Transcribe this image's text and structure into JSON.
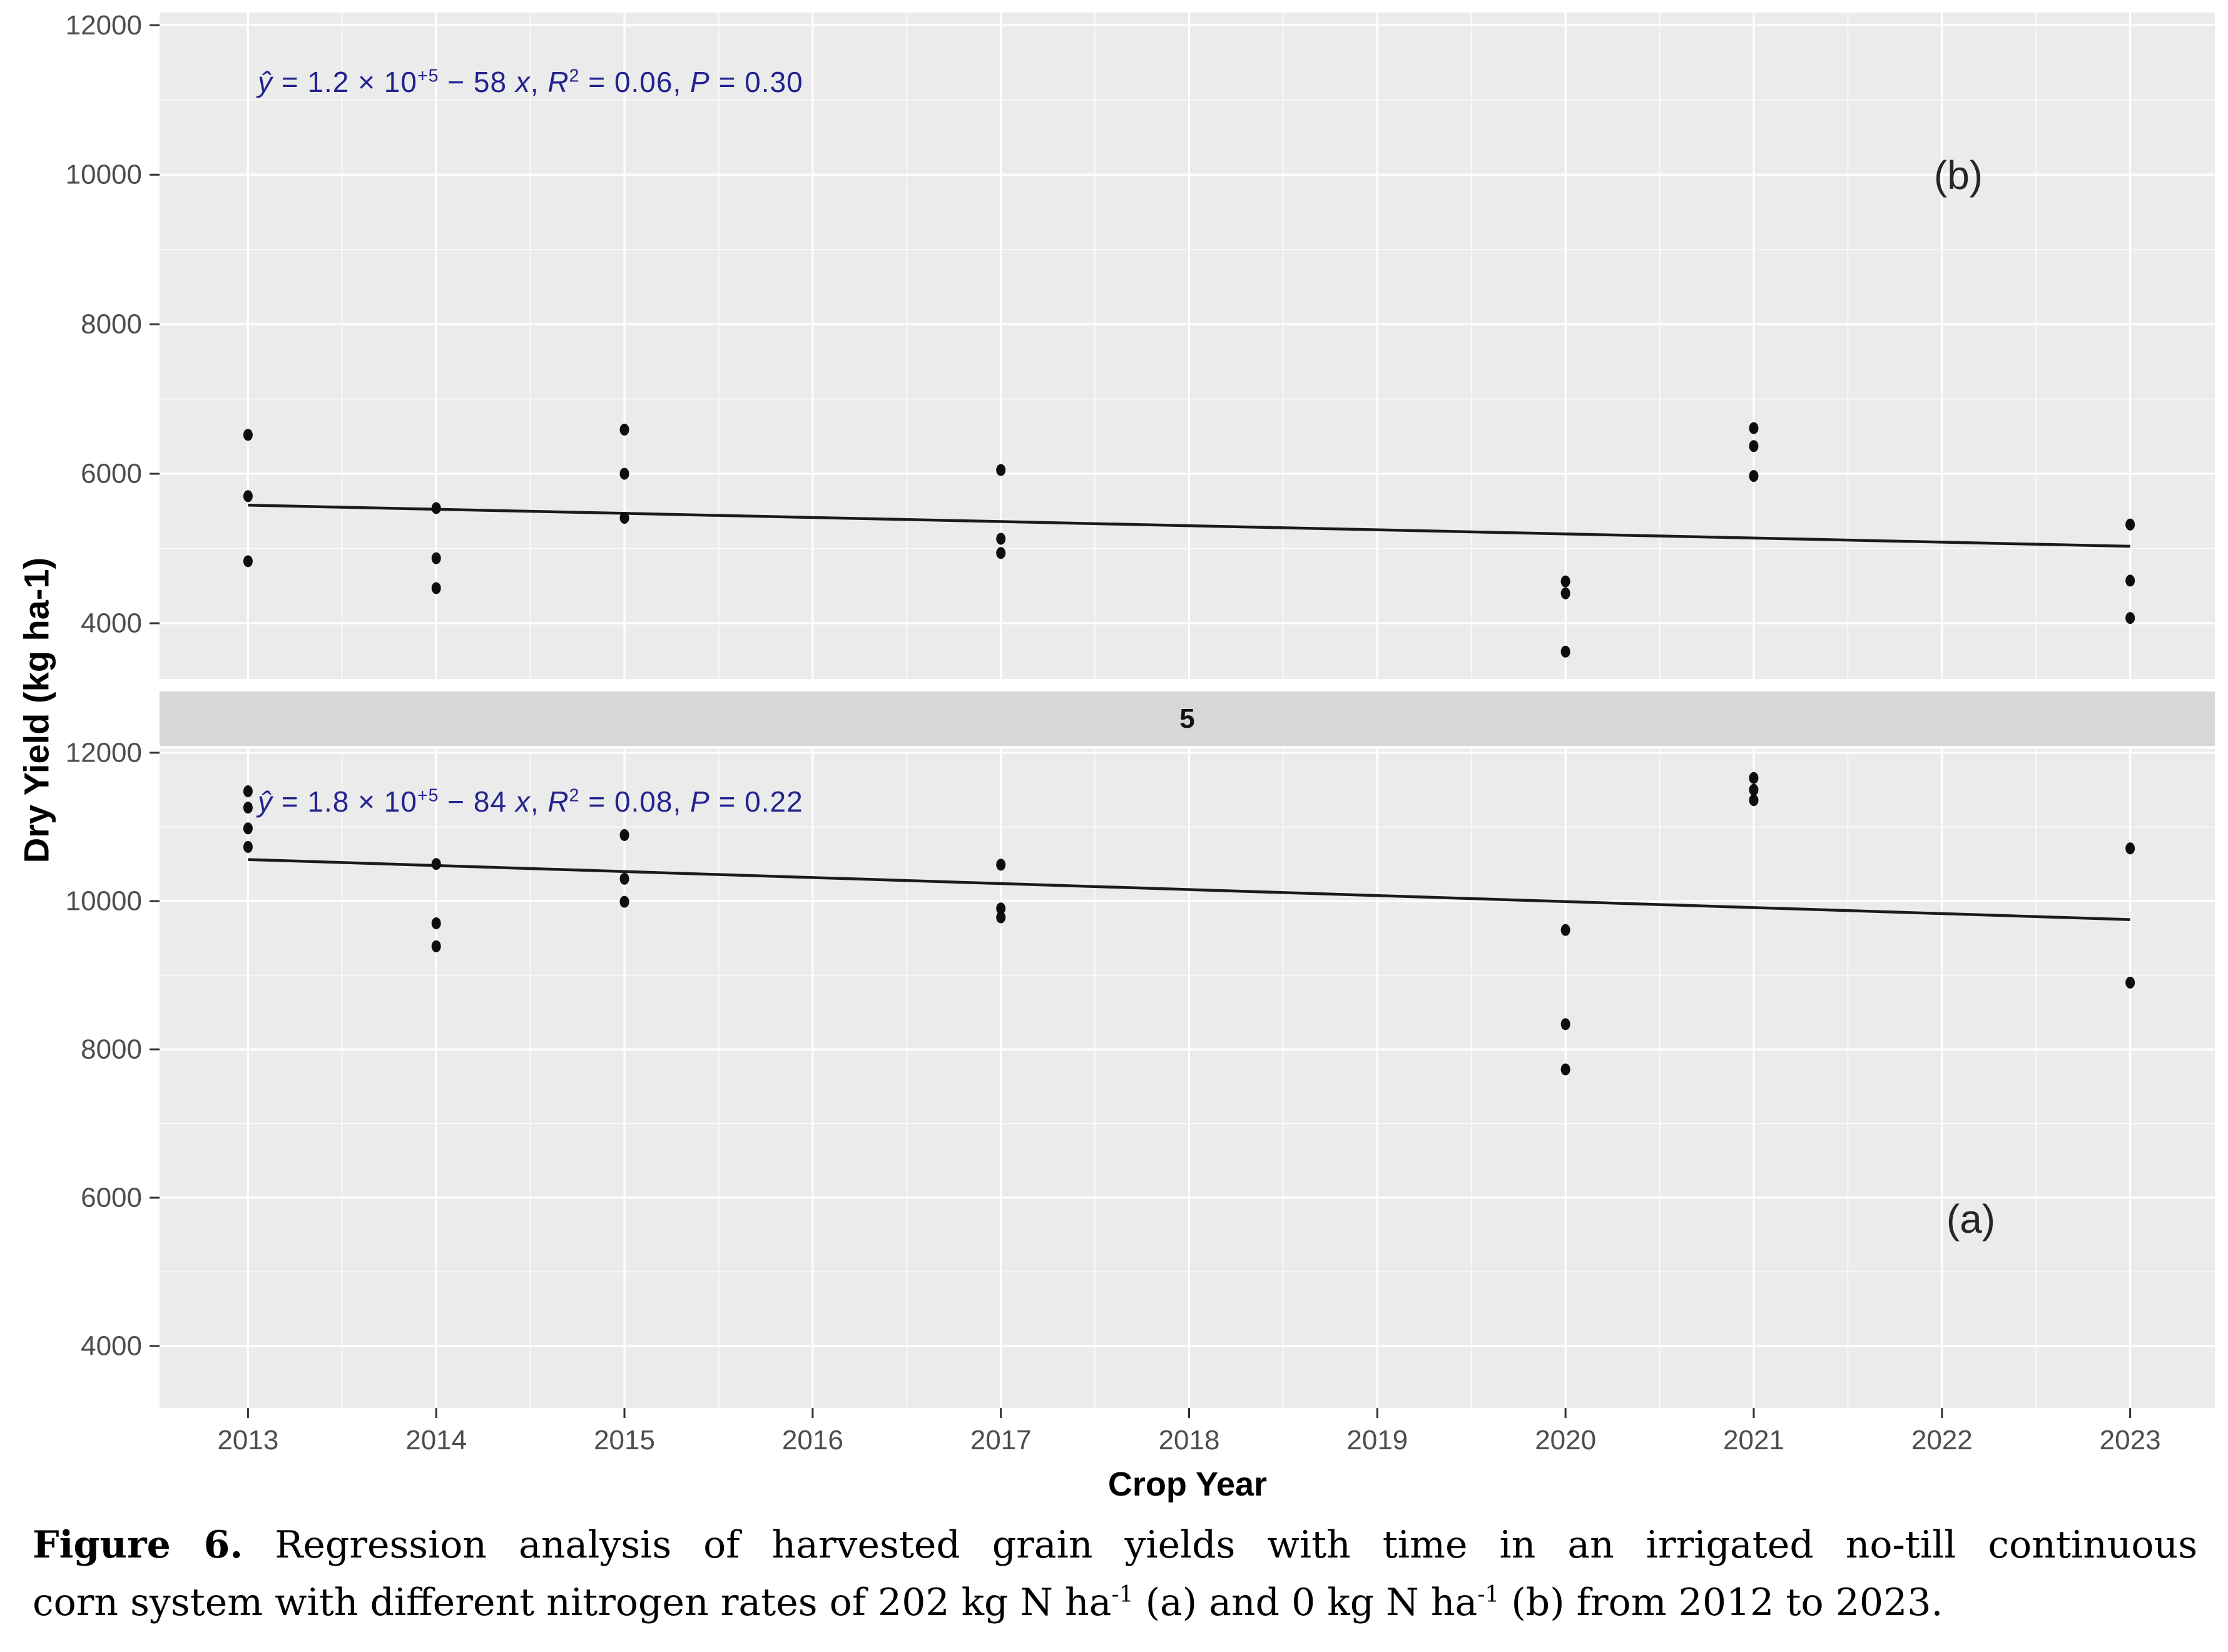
{
  "colors": {
    "panel_bg": "#ebebeb",
    "strip_bg": "#d7d7d7",
    "grid": "#ffffff",
    "point": "#0d0d0d",
    "line": "#1a1a1a",
    "tick": "#333333",
    "tick_label": "#4d4d4d",
    "equation": "#23238f"
  },
  "y_axis_title": "Dry Yield (kg ha-1)",
  "x_axis_title": "Crop Year",
  "strip_label": "5",
  "caption": {
    "line1_runs": [
      {
        "t": "Figure 6.",
        "b": 1
      },
      {
        "t": " Regression analysis of harvested grain yields with time in an irrigated no-till continuous"
      }
    ],
    "line2_runs": [
      {
        "t": "corn system with different nitrogen rates of 202 kg N ha"
      },
      {
        "t": "-1",
        "sup": 1
      },
      {
        "t": " (a) and 0 kg N ha"
      },
      {
        "t": "-1",
        "sup": 1
      },
      {
        "t": " (b) from 2012 to 2023."
      }
    ]
  },
  "chart_data": [
    {
      "panel": "top",
      "label": "(b)",
      "type": "scatter",
      "xlabel": "Crop Year",
      "ylabel": "Dry Yield (kg ha-1)",
      "equation_runs": [
        {
          "t": "ŷ",
          "i": 1
        },
        {
          "t": " = 1.2 × 10"
        },
        {
          "t": "+5",
          "sup": 1
        },
        {
          "t": " − 58 "
        },
        {
          "t": "x",
          "i": 1
        },
        {
          "t": ", "
        },
        {
          "t": "R",
          "i": 1
        },
        {
          "t": "2",
          "sup": 1
        },
        {
          "t": " = 0.06, "
        },
        {
          "t": "P",
          "i": 1
        },
        {
          "t": " = 0.30"
        }
      ],
      "xticks": [
        2013,
        2014,
        2015,
        2016,
        2017,
        2018,
        2019,
        2020,
        2021,
        2022,
        2023
      ],
      "yticks": [
        4000,
        6000,
        8000,
        10000,
        12000
      ],
      "yticks_minor": [
        5000,
        7000,
        9000,
        11000
      ],
      "xlim": [
        2012.53,
        2023.45
      ],
      "ylim": [
        3255,
        12170
      ],
      "points": [
        [
          2013,
          6520
        ],
        [
          2013,
          5700
        ],
        [
          2013,
          4830
        ],
        [
          2014,
          5540
        ],
        [
          2014,
          4870
        ],
        [
          2014,
          4470
        ],
        [
          2015,
          6590
        ],
        [
          2015,
          6000
        ],
        [
          2015,
          5410
        ],
        [
          2017,
          6050
        ],
        [
          2017,
          5130
        ],
        [
          2017,
          4940
        ],
        [
          2020,
          4560
        ],
        [
          2020,
          4400
        ],
        [
          2020,
          3620
        ],
        [
          2021,
          6610
        ],
        [
          2021,
          6370
        ],
        [
          2021,
          5970
        ],
        [
          2023,
          5320
        ],
        [
          2023,
          4570
        ],
        [
          2023,
          4070
        ]
      ],
      "regression": {
        "x": [
          2013,
          2023
        ],
        "y": [
          5580,
          5030
        ]
      }
    },
    {
      "panel": "bottom",
      "label": "(a)",
      "type": "scatter",
      "xlabel": "Crop Year",
      "ylabel": "Dry Yield (kg ha-1)",
      "equation_runs": [
        {
          "t": "ŷ",
          "i": 1
        },
        {
          "t": " = 1.8 × 10"
        },
        {
          "t": "+5",
          "sup": 1
        },
        {
          "t": " − 84 "
        },
        {
          "t": "x",
          "i": 1
        },
        {
          "t": ", "
        },
        {
          "t": "R",
          "i": 1
        },
        {
          "t": "2",
          "sup": 1
        },
        {
          "t": " = 0.08, "
        },
        {
          "t": "P",
          "i": 1
        },
        {
          "t": " = 0.22"
        }
      ],
      "xticks": [
        2013,
        2014,
        2015,
        2016,
        2017,
        2018,
        2019,
        2020,
        2021,
        2022,
        2023
      ],
      "yticks": [
        4000,
        6000,
        8000,
        10000,
        12000
      ],
      "yticks_minor": [
        5000,
        7000,
        9000,
        11000
      ],
      "xlim": [
        2012.53,
        2023.45
      ],
      "ylim": [
        3165,
        12050
      ],
      "points": [
        [
          2013,
          11480
        ],
        [
          2013,
          11260
        ],
        [
          2013,
          10980
        ],
        [
          2013,
          10730
        ],
        [
          2014,
          10500
        ],
        [
          2014,
          9700
        ],
        [
          2014,
          9390
        ],
        [
          2015,
          10890
        ],
        [
          2015,
          10300
        ],
        [
          2015,
          9990
        ],
        [
          2017,
          10490
        ],
        [
          2017,
          9900
        ],
        [
          2017,
          9780
        ],
        [
          2020,
          9610
        ],
        [
          2020,
          8340
        ],
        [
          2020,
          7730
        ],
        [
          2021,
          11660
        ],
        [
          2021,
          11500
        ],
        [
          2021,
          11360
        ],
        [
          2023,
          10710
        ],
        [
          2023,
          8900
        ]
      ],
      "regression": {
        "x": [
          2013,
          2023
        ],
        "y": [
          10560,
          9750
        ]
      }
    }
  ]
}
